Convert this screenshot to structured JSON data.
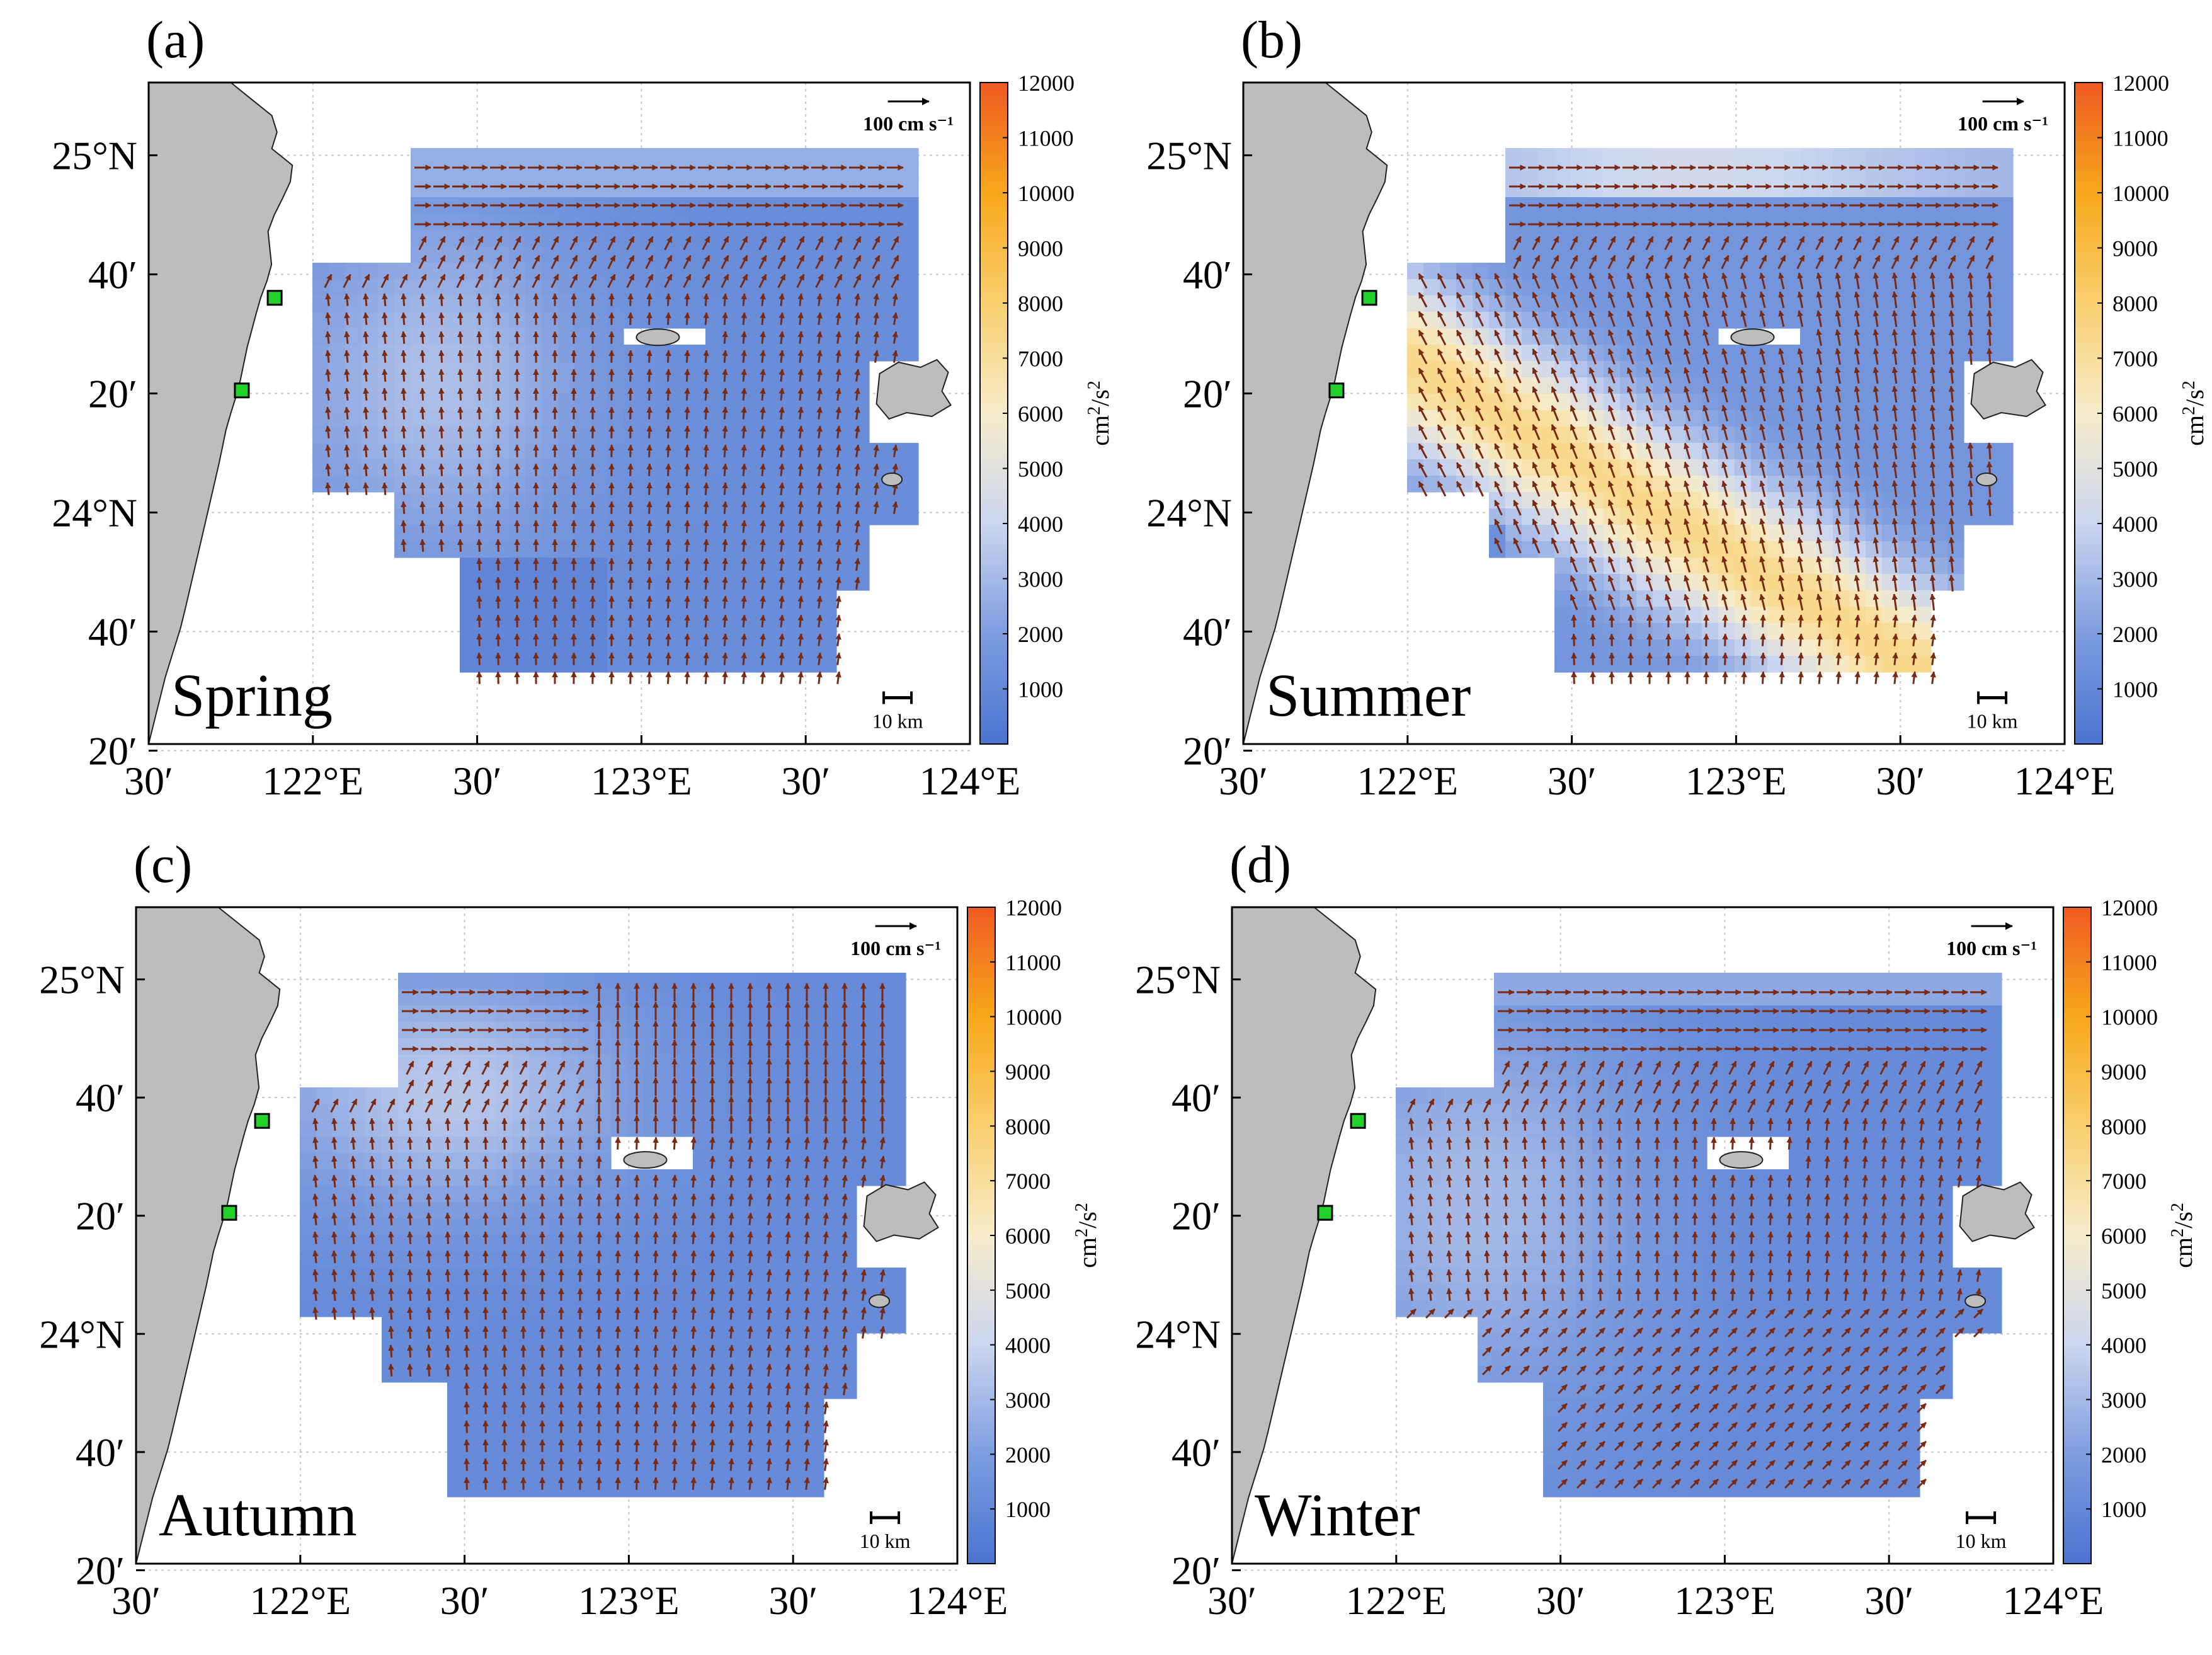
{
  "figure": {
    "panels": [
      {
        "tag": "(a)",
        "season": "Spring",
        "pattern": "spring"
      },
      {
        "tag": "(b)",
        "season": "Summer",
        "pattern": "summer"
      },
      {
        "tag": "(c)",
        "season": "Autumn",
        "pattern": "autumn"
      },
      {
        "tag": "(d)",
        "season": "Winter",
        "pattern": "winter"
      }
    ],
    "lon_ticks": [
      "30′",
      "122°E",
      "30′",
      "123°E",
      "30′",
      "124°E"
    ],
    "lat_ticks": [
      "25°N",
      "40′",
      "20′",
      "24°N",
      "40′",
      "20′"
    ],
    "lon_range": [
      121.5,
      124.0
    ],
    "lat_range": [
      23.25,
      25.25
    ],
    "vector_scale_label": "100 cm s⁻¹",
    "vector_scale_value_cm_s": 100,
    "distance_scale_label": "10 km",
    "colorbar": {
      "label_base": "cm",
      "label_exp1": "2",
      "label_mid": "/s",
      "label_exp2": "2",
      "range": [
        0,
        12000
      ],
      "ticks": [
        "12000",
        "11000",
        "10000",
        "9000",
        "8000",
        "7000",
        "6000",
        "5000",
        "4000",
        "3000",
        "2000",
        "1000"
      ],
      "colors": [
        "#4a74d0",
        "#7e9ddf",
        "#cbd6ef",
        "#f7eccb",
        "#f9cf6e",
        "#f7a81a",
        "#ef5a22"
      ]
    },
    "land_color": "#bdbdbd",
    "vector_color": "#7a2a12",
    "station_color": "#22d12a"
  }
}
